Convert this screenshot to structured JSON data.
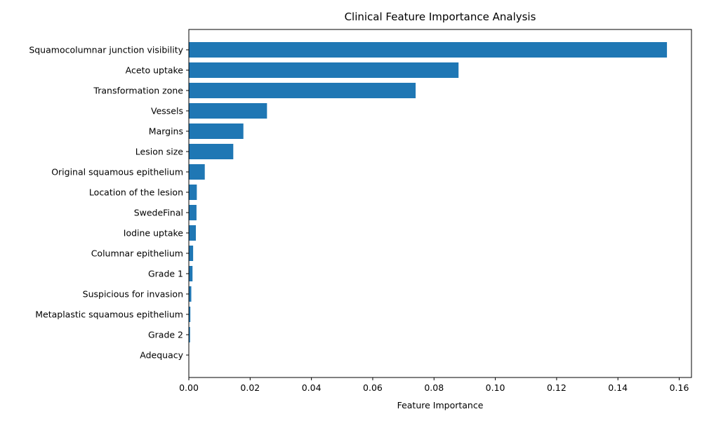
{
  "chart_data": {
    "type": "bar",
    "orientation": "horizontal",
    "title": "Clinical Feature Importance Analysis",
    "xlabel": "Feature Importance",
    "ylabel": "",
    "xlim": [
      0,
      0.164
    ],
    "x_ticks": [
      0.0,
      0.02,
      0.04,
      0.06,
      0.08,
      0.1,
      0.12,
      0.14,
      0.16
    ],
    "x_tick_labels": [
      "0.00",
      "0.02",
      "0.04",
      "0.06",
      "0.08",
      "0.10",
      "0.12",
      "0.14",
      "0.16"
    ],
    "grid": false,
    "bar_color": "#1f77b4",
    "categories": [
      "Squamocolumnar junction visibility",
      "Aceto uptake",
      "Transformation zone",
      "Vessels",
      "Margins",
      "Lesion size",
      "Original squamous epithelium",
      "Location of the lesion",
      "SwedeFinal",
      "Iodine uptake",
      "Columnar epithelium",
      "Grade 1",
      "Suspicious for invasion",
      "Metaplastic squamous epithelium",
      "Grade 2",
      "Adequacy"
    ],
    "values": [
      0.156,
      0.088,
      0.074,
      0.0255,
      0.0178,
      0.0145,
      0.0052,
      0.0026,
      0.0025,
      0.0023,
      0.0014,
      0.0012,
      0.0008,
      0.0005,
      0.0004,
      0.0001
    ]
  }
}
